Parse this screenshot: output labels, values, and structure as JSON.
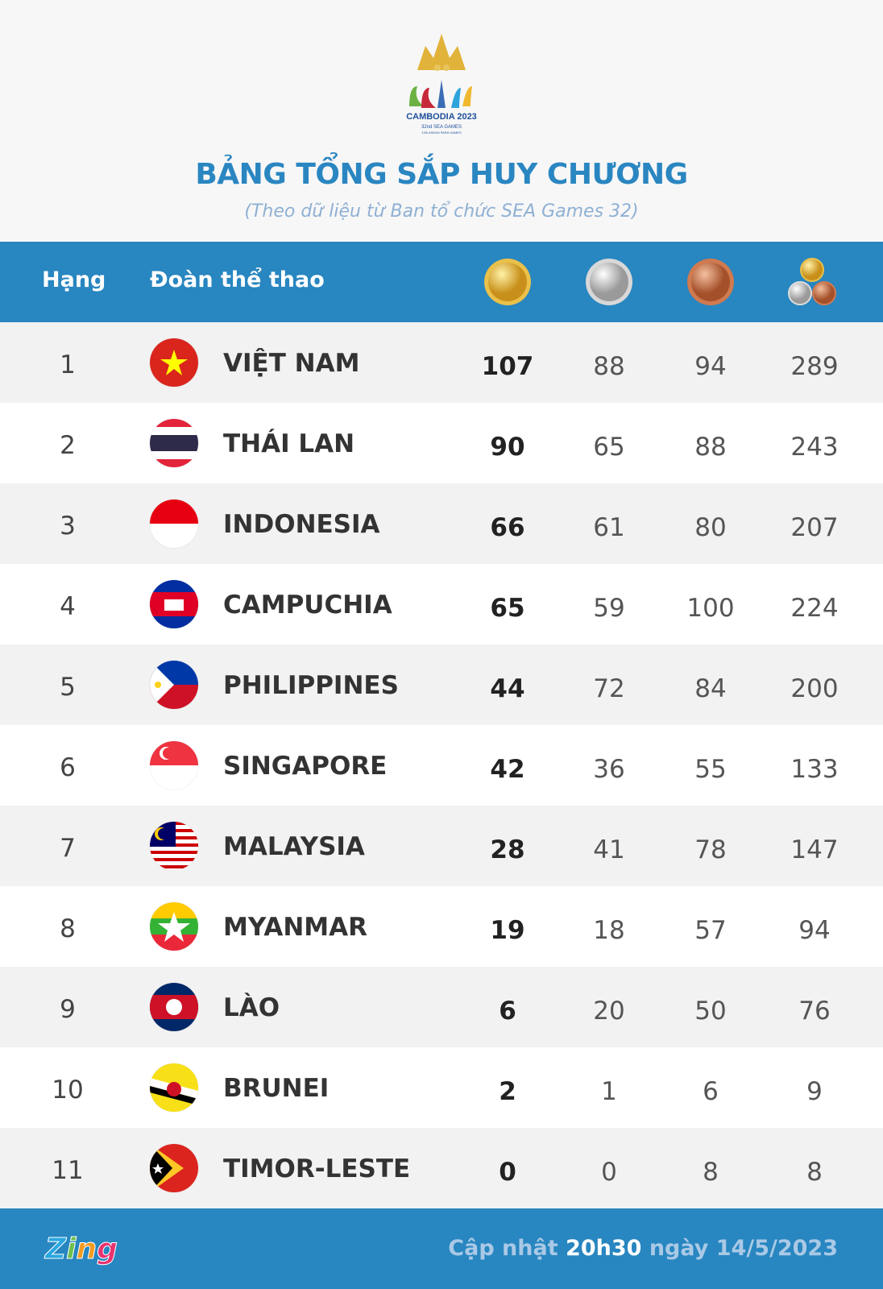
{
  "logo": {
    "text": "CAMBODIA 2023",
    "sub": "32nd SEA GAMES",
    "sub2": "12th ASEAN PARA GAMES"
  },
  "title": "BẢNG TỔNG SẮP HUY CHƯƠNG",
  "subtitle": "(Theo dữ liệu từ Ban tổ chức SEA Games 32)",
  "header": {
    "rank": "Hạng",
    "team": "Đoàn thể thao",
    "icons": [
      "gold-medal-icon",
      "silver-medal-icon",
      "bronze-medal-icon",
      "total-medals-icon"
    ]
  },
  "rows": [
    {
      "rank": "1",
      "name": "VIỆT NAM",
      "gold": "107",
      "silver": "88",
      "bronze": "94",
      "total": "289"
    },
    {
      "rank": "2",
      "name": "THÁI LAN",
      "gold": "90",
      "silver": "65",
      "bronze": "88",
      "total": "243"
    },
    {
      "rank": "3",
      "name": "INDONESIA",
      "gold": "66",
      "silver": "61",
      "bronze": "80",
      "total": "207"
    },
    {
      "rank": "4",
      "name": "CAMPUCHIA",
      "gold": "65",
      "silver": "59",
      "bronze": "100",
      "total": "224"
    },
    {
      "rank": "5",
      "name": "PHILIPPINES",
      "gold": "44",
      "silver": "72",
      "bronze": "84",
      "total": "200"
    },
    {
      "rank": "6",
      "name": "SINGAPORE",
      "gold": "42",
      "silver": "36",
      "bronze": "55",
      "total": "133"
    },
    {
      "rank": "7",
      "name": "MALAYSIA",
      "gold": "28",
      "silver": "41",
      "bronze": "78",
      "total": "147"
    },
    {
      "rank": "8",
      "name": "MYANMAR",
      "gold": "19",
      "silver": "18",
      "bronze": "57",
      "total": "94"
    },
    {
      "rank": "9",
      "name": "LÀO",
      "gold": "6",
      "silver": "20",
      "bronze": "50",
      "total": "76"
    },
    {
      "rank": "10",
      "name": "BRUNEI",
      "gold": "2",
      "silver": "1",
      "bronze": "6",
      "total": "9"
    },
    {
      "rank": "11",
      "name": "TIMOR-LESTE",
      "gold": "0",
      "silver": "0",
      "bronze": "8",
      "total": "8"
    }
  ],
  "footer": {
    "brand": "Zing",
    "update_prefix": "Cập nhật",
    "update_time": "20h30",
    "update_suffix": "ngày 14/5/2023"
  },
  "colors": {
    "accent": "#2886c0",
    "title": "#2a86c1"
  }
}
